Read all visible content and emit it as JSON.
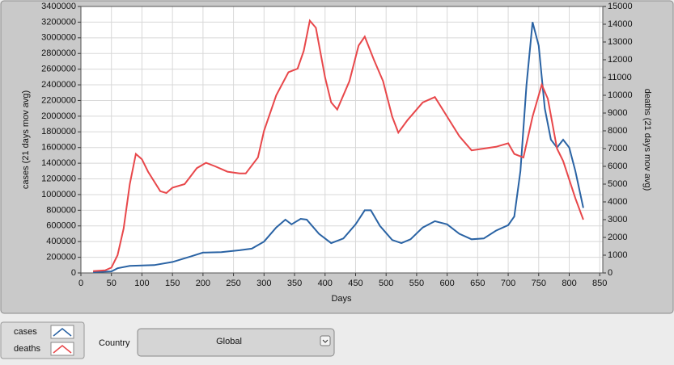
{
  "chart_data": {
    "type": "line",
    "xlabel": "Days",
    "ylabel": "cases  (21 days mov avg)",
    "y2label": "deaths  (21 days mov avg)",
    "xlim": [
      0,
      855
    ],
    "xticks": [
      0,
      50,
      100,
      150,
      200,
      250,
      300,
      350,
      400,
      450,
      500,
      550,
      600,
      650,
      700,
      750,
      800,
      850
    ],
    "ylim": [
      0,
      3400000
    ],
    "yticks": [
      0,
      200000,
      400000,
      600000,
      800000,
      1000000,
      1200000,
      1400000,
      1600000,
      1800000,
      2000000,
      2200000,
      2400000,
      2600000,
      2800000,
      3000000,
      3200000,
      3400000
    ],
    "y2lim": [
      0,
      15000
    ],
    "y2ticks": [
      0,
      1000,
      2000,
      3000,
      4000,
      5000,
      6000,
      7000,
      8000,
      9000,
      10000,
      11000,
      12000,
      13000,
      14000,
      15000
    ],
    "grid": true,
    "series": [
      {
        "name": "cases",
        "color": "#2a63a4",
        "x": [
          20,
          50,
          60,
          80,
          100,
          120,
          150,
          180,
          200,
          230,
          260,
          280,
          300,
          320,
          335,
          345,
          360,
          370,
          390,
          410,
          430,
          450,
          465,
          475,
          490,
          510,
          525,
          540,
          560,
          580,
          600,
          620,
          640,
          660,
          680,
          700,
          710,
          720,
          730,
          740,
          750,
          760,
          770,
          780,
          790,
          800,
          810,
          823
        ],
        "values": [
          10000,
          20000,
          60000,
          90000,
          95000,
          100000,
          140000,
          210000,
          260000,
          265000,
          290000,
          310000,
          400000,
          580000,
          680000,
          620000,
          690000,
          680000,
          500000,
          380000,
          440000,
          620000,
          800000,
          800000,
          600000,
          420000,
          380000,
          430000,
          580000,
          660000,
          620000,
          500000,
          430000,
          440000,
          540000,
          610000,
          720000,
          1300000,
          2400000,
          3200000,
          2900000,
          2100000,
          1700000,
          1600000,
          1700000,
          1600000,
          1300000,
          830000
        ]
      },
      {
        "name": "deaths",
        "color": "#e8474a",
        "axis": "y2",
        "x": [
          20,
          40,
          50,
          60,
          70,
          80,
          90,
          100,
          110,
          130,
          140,
          150,
          170,
          190,
          205,
          220,
          240,
          260,
          270,
          290,
          300,
          320,
          340,
          355,
          365,
          375,
          385,
          400,
          410,
          420,
          440,
          455,
          465,
          480,
          495,
          510,
          520,
          535,
          560,
          580,
          600,
          620,
          640,
          660,
          680,
          700,
          710,
          725,
          740,
          755,
          765,
          780,
          790,
          810,
          823
        ],
        "values": [
          100,
          150,
          300,
          1000,
          2500,
          5000,
          6700,
          6400,
          5700,
          4600,
          4500,
          4800,
          5000,
          5900,
          6200,
          6000,
          5700,
          5600,
          5600,
          6500,
          8000,
          10000,
          11300,
          11500,
          12500,
          14200,
          13800,
          11000,
          9600,
          9200,
          10800,
          12800,
          13300,
          12000,
          10800,
          8800,
          7900,
          8600,
          9600,
          9900,
          8800,
          7700,
          6900,
          7000,
          7100,
          7300,
          6700,
          6500,
          8800,
          10600,
          9800,
          7000,
          6300,
          4200,
          3000
        ]
      }
    ]
  },
  "controls": {
    "country_label": "Country",
    "country_value": "Global"
  }
}
